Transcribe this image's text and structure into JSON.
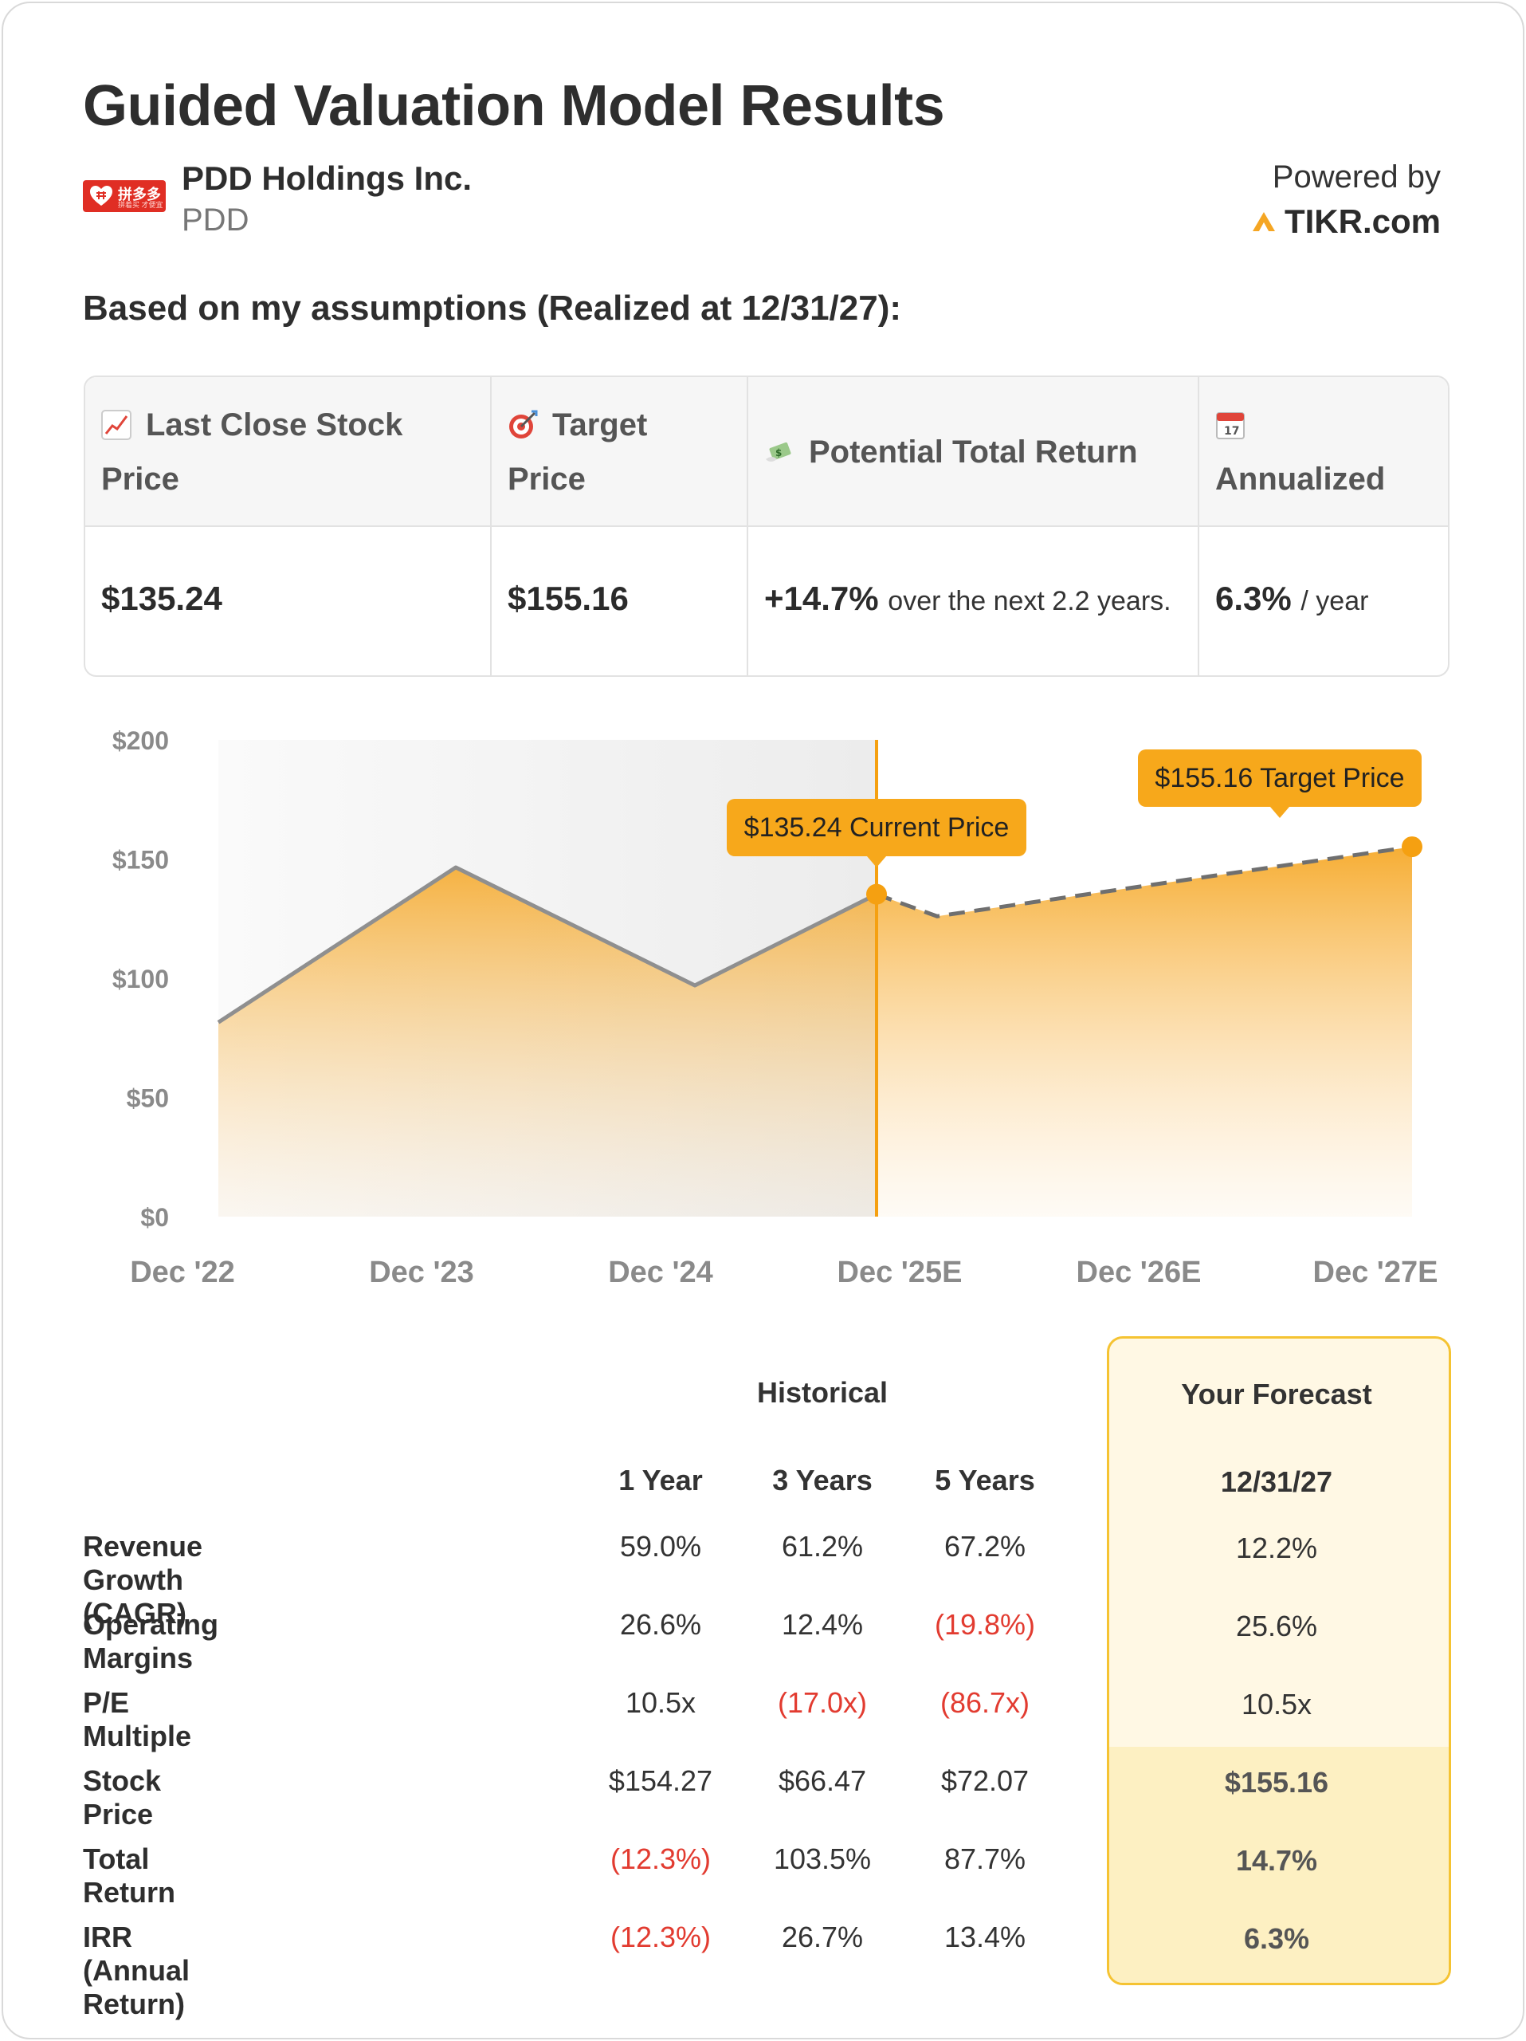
{
  "header": {
    "title": "Guided Valuation Model Results",
    "company_name": "PDD Holdings Inc.",
    "ticker": "PDD",
    "logo_text": "拼多多",
    "logo_subtext": "拼着买 才便宜",
    "powered_by": "Powered by",
    "brand": "TIKR.com",
    "assumptions_line": "Based on my assumptions (Realized at 12/31/27):"
  },
  "summary": {
    "headers": [
      {
        "icon": "chart-increasing-icon",
        "label_line1": "Last Close Stock",
        "label_line2": "Price"
      },
      {
        "icon": "target-icon",
        "label_line1": "Target",
        "label_line2": "Price"
      },
      {
        "icon": "money-with-wings-icon",
        "label_line1": "Potential Total Return"
      },
      {
        "icon": "calendar-icon",
        "calendar_day": "17",
        "label_line1": "Annualized"
      }
    ],
    "last_close": "$135.24",
    "target_price": "$155.16",
    "total_return": "+14.7%",
    "total_return_note": "over the next 2.2 years.",
    "annualized": "6.3%",
    "annualized_unit": "/ year"
  },
  "chart_data": {
    "type": "area",
    "x": [
      "Dec '22",
      "Dec '23",
      "Dec '24",
      "Dec '25E",
      "Dec '26E",
      "Dec '27E"
    ],
    "y_tick_labels": [
      "$0",
      "$50",
      "$100",
      "$150",
      "$200"
    ],
    "ylim": [
      0,
      200
    ],
    "historical": [
      {
        "x": "Dec '22",
        "y": 81.5
      },
      {
        "x": "Dec '23",
        "y": 146.5
      },
      {
        "x": "Dec '24",
        "y": 97.0
      },
      {
        "x": "Dec '25E",
        "y": 135.24
      }
    ],
    "forecast": [
      {
        "x": "Dec '25E",
        "y": 135.24
      },
      {
        "x": "Dec '25E",
        "y": 126.0
      },
      {
        "x": "Dec '27E",
        "y": 155.16
      }
    ],
    "annotations": [
      {
        "text": "$135.24 Current Price",
        "value": 135.24
      },
      {
        "text": "$155.16 Target Price",
        "value": 155.16
      }
    ],
    "colors": {
      "area": "#f5a623",
      "line": "#8f8f8f",
      "marker": "#f5a011",
      "label_bg": "#f7a81b",
      "shade": "#efefef"
    }
  },
  "table": {
    "historical_title": "Historical",
    "forecast_title": "Your Forecast",
    "columns": [
      "1 Year",
      "3 Years",
      "5 Years"
    ],
    "forecast_date": "12/31/27",
    "rows": [
      {
        "label": "Revenue Growth (CAGR)",
        "values": [
          "59.0%",
          "61.2%",
          "67.2%"
        ],
        "forecast": "12.2%"
      },
      {
        "label": "Operating Margins",
        "values": [
          "26.6%",
          "12.4%",
          "(19.8%)"
        ],
        "forecast": "25.6%"
      },
      {
        "label": "P/E Multiple",
        "values": [
          "10.5x",
          "(17.0x)",
          "(86.7x)"
        ],
        "forecast": "10.5x"
      },
      {
        "label": "Stock Price",
        "values": [
          "$154.27",
          "$66.47",
          "$72.07"
        ],
        "forecast": "$155.16"
      },
      {
        "label": "Total Return",
        "values": [
          "(12.3%)",
          "103.5%",
          "87.7%"
        ],
        "forecast": "14.7%"
      },
      {
        "label": "IRR (Annual Return)",
        "values": [
          "(12.3%)",
          "26.7%",
          "13.4%"
        ],
        "forecast": "6.3%"
      }
    ]
  }
}
